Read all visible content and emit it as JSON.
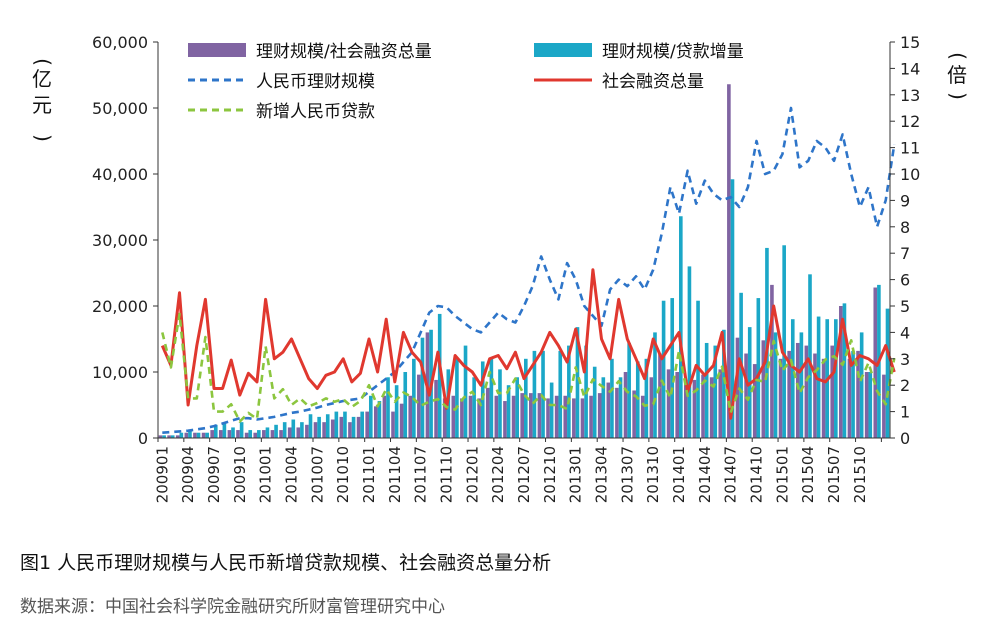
{
  "caption": "图1  人民币理财规模与人民币新增贷款规模、社会融资总量分析",
  "source": "数据来源：中国社会科学院金融研究所财富管理研究中心",
  "chart_data": {
    "type": "bar+line",
    "left_axis": {
      "unit_label": "亿元",
      "range": [
        0,
        60000
      ],
      "ticks": [
        "0",
        "10,000",
        "20,000",
        "30,000",
        "40,000",
        "50,000",
        "60,000"
      ]
    },
    "right_axis": {
      "unit_label": "倍",
      "range": [
        0,
        15
      ],
      "ticks": [
        "0",
        "1",
        "2",
        "3",
        "4",
        "5",
        "6",
        "7",
        "8",
        "9",
        "10",
        "11",
        "12",
        "13",
        "14",
        "15"
      ]
    },
    "x_tick_labels": [
      "200901",
      "200904",
      "200907",
      "200910",
      "201001",
      "201004",
      "201007",
      "201010",
      "201101",
      "201104",
      "201107",
      "201110",
      "201201",
      "201204",
      "201207",
      "201210",
      "201301",
      "201304",
      "201307",
      "201310",
      "201401",
      "201404",
      "201407",
      "201410",
      "201501",
      "201504",
      "201507",
      "201510"
    ],
    "x_tick_index": [
      0,
      3,
      6,
      9,
      12,
      15,
      18,
      21,
      24,
      27,
      30,
      33,
      36,
      39,
      42,
      45,
      48,
      51,
      54,
      57,
      60,
      63,
      66,
      69,
      72,
      75,
      78,
      81
    ],
    "colors": {
      "bar_purple": "#8064a2",
      "bar_teal": "#1ba7c7",
      "line_blue": "#2e75c9",
      "line_red": "#e0382f",
      "line_green": "#8cc63f"
    },
    "series": [
      {
        "name": "理财规模/社会融资总量",
        "kind": "bar",
        "axis": "right",
        "values": [
          0.1,
          0.1,
          0.1,
          0.2,
          0.2,
          0.2,
          0.3,
          0.3,
          0.3,
          0.3,
          0.2,
          0.2,
          0.3,
          0.3,
          0.3,
          0.4,
          0.4,
          0.5,
          0.6,
          0.6,
          0.7,
          0.8,
          0.6,
          0.8,
          1.0,
          1.2,
          1.6,
          1.0,
          1.3,
          1.6,
          2.4,
          4.0,
          2.2,
          1.5,
          1.6,
          1.5,
          1.6,
          1.5,
          1.9,
          1.6,
          1.4,
          1.6,
          1.7,
          1.7,
          1.7,
          1.5,
          1.6,
          1.6,
          1.5,
          1.5,
          1.6,
          1.7,
          2.1,
          1.9,
          2.5,
          1.8,
          1.6,
          2.3,
          3.2,
          2.6,
          2.5,
          2.2,
          2.2,
          2.4,
          2.3,
          2.6,
          13.4,
          3.8,
          3.2,
          2.8,
          3.7,
          5.8,
          3.0,
          3.3,
          3.6,
          3.5,
          3.2,
          3.0,
          3.5,
          5.0,
          3.0,
          3.3,
          2.5,
          5.7,
          2.4
        ]
      },
      {
        "name": "理财规模/贷款增量",
        "kind": "bar",
        "axis": "right",
        "values": [
          0.1,
          0.1,
          0.2,
          0.3,
          0.2,
          0.2,
          0.5,
          0.6,
          0.4,
          0.6,
          0.3,
          0.3,
          0.4,
          0.5,
          0.6,
          0.7,
          0.6,
          0.9,
          0.8,
          0.9,
          1.0,
          1.0,
          0.8,
          1.0,
          1.6,
          1.4,
          2.3,
          2.0,
          2.5,
          3.0,
          3.8,
          4.1,
          4.7,
          2.6,
          3.0,
          3.5,
          2.3,
          2.9,
          3.0,
          2.6,
          2.0,
          2.3,
          3.0,
          3.3,
          3.3,
          2.1,
          3.3,
          3.5,
          4.2,
          3.5,
          2.7,
          2.3,
          3.0,
          2.3,
          3.6,
          2.9,
          3.0,
          4.0,
          5.2,
          5.3,
          8.4,
          6.5,
          5.2,
          3.6,
          3.5,
          4.1,
          9.8,
          5.5,
          4.2,
          5.3,
          7.2,
          4.0,
          7.3,
          4.5,
          4.0,
          6.2,
          4.6,
          4.5,
          4.5,
          5.1,
          3.3,
          4.0,
          2.5,
          5.8,
          4.9
        ]
      },
      {
        "name": "人民币理财规模",
        "kind": "line",
        "axis": "left",
        "style": "dashed",
        "values": [
          800,
          900,
          1000,
          1100,
          1300,
          1500,
          1800,
          2200,
          2600,
          3000,
          3000,
          2800,
          3000,
          3200,
          3500,
          3800,
          4000,
          4300,
          4600,
          5000,
          5300,
          5600,
          5800,
          6000,
          7000,
          8000,
          9000,
          10000,
          11500,
          13000,
          16000,
          19000,
          20000,
          19800,
          18500,
          17500,
          16500,
          16000,
          17500,
          19000,
          18000,
          17500,
          20000,
          23000,
          27500,
          24000,
          21000,
          26500,
          24000,
          20000,
          18500,
          17000,
          22500,
          24000,
          23000,
          24500,
          22500,
          25500,
          31000,
          38000,
          34000,
          40500,
          35500,
          39000,
          37000,
          36000,
          36500,
          35000,
          38000,
          45000,
          40000,
          40500,
          43000,
          50000,
          41000,
          42000,
          45000,
          44000,
          42000,
          46000,
          40000,
          35000,
          38000,
          32000,
          36000,
          44500
        ]
      },
      {
        "name": "社会融资总量",
        "kind": "line",
        "axis": "left",
        "style": "solid",
        "values": [
          14000,
          11000,
          22000,
          5000,
          14000,
          21000,
          7500,
          7500,
          11800,
          6500,
          9800,
          8500,
          21000,
          12000,
          13000,
          15000,
          12000,
          9000,
          7500,
          9500,
          10000,
          12000,
          8500,
          9800,
          15000,
          10000,
          18000,
          8500,
          16000,
          13000,
          11500,
          6500,
          13000,
          4500,
          12500,
          11000,
          10000,
          8000,
          12000,
          12500,
          10500,
          13000,
          9000,
          11000,
          13000,
          16000,
          14000,
          11500,
          16500,
          10000,
          25500,
          15000,
          12000,
          21000,
          15000,
          12000,
          9000,
          15000,
          12000,
          14000,
          16000,
          7000,
          11000,
          9500,
          11000,
          16000,
          3000,
          12000,
          8000,
          9000,
          11500,
          20000,
          13000,
          11000,
          10000,
          12000,
          9000,
          8500,
          10000,
          18000,
          11000,
          12500,
          12000,
          11000,
          14000,
          10000
        ]
      },
      {
        "name": "新增人民币贷款",
        "kind": "line",
        "axis": "left",
        "style": "dashed",
        "values": [
          16000,
          10700,
          18800,
          6000,
          6000,
          15300,
          4000,
          4000,
          5100,
          2500,
          3800,
          2900,
          13900,
          6000,
          7400,
          5000,
          6000,
          4800,
          5300,
          6000,
          5500,
          5900,
          4700,
          5600,
          8000,
          4800,
          7400,
          5500,
          6900,
          6200,
          4900,
          5500,
          5900,
          4700,
          4300,
          6100,
          7000,
          5000,
          10000,
          6800,
          6800,
          9000,
          6600,
          5200,
          6500,
          5000,
          5000,
          4400,
          10700,
          6200,
          8900,
          7900,
          7000,
          8600,
          7000,
          6300,
          4900,
          5100,
          8700,
          6100,
          13200,
          6400,
          7200,
          8700,
          7800,
          10800,
          3850,
          7500,
          5800,
          8800,
          8500,
          14700,
          10200,
          11800,
          6800,
          9200,
          10300,
          11900,
          12400,
          11100,
          14800,
          8500,
          11400,
          7100,
          5100,
          12100
        ]
      }
    ]
  }
}
